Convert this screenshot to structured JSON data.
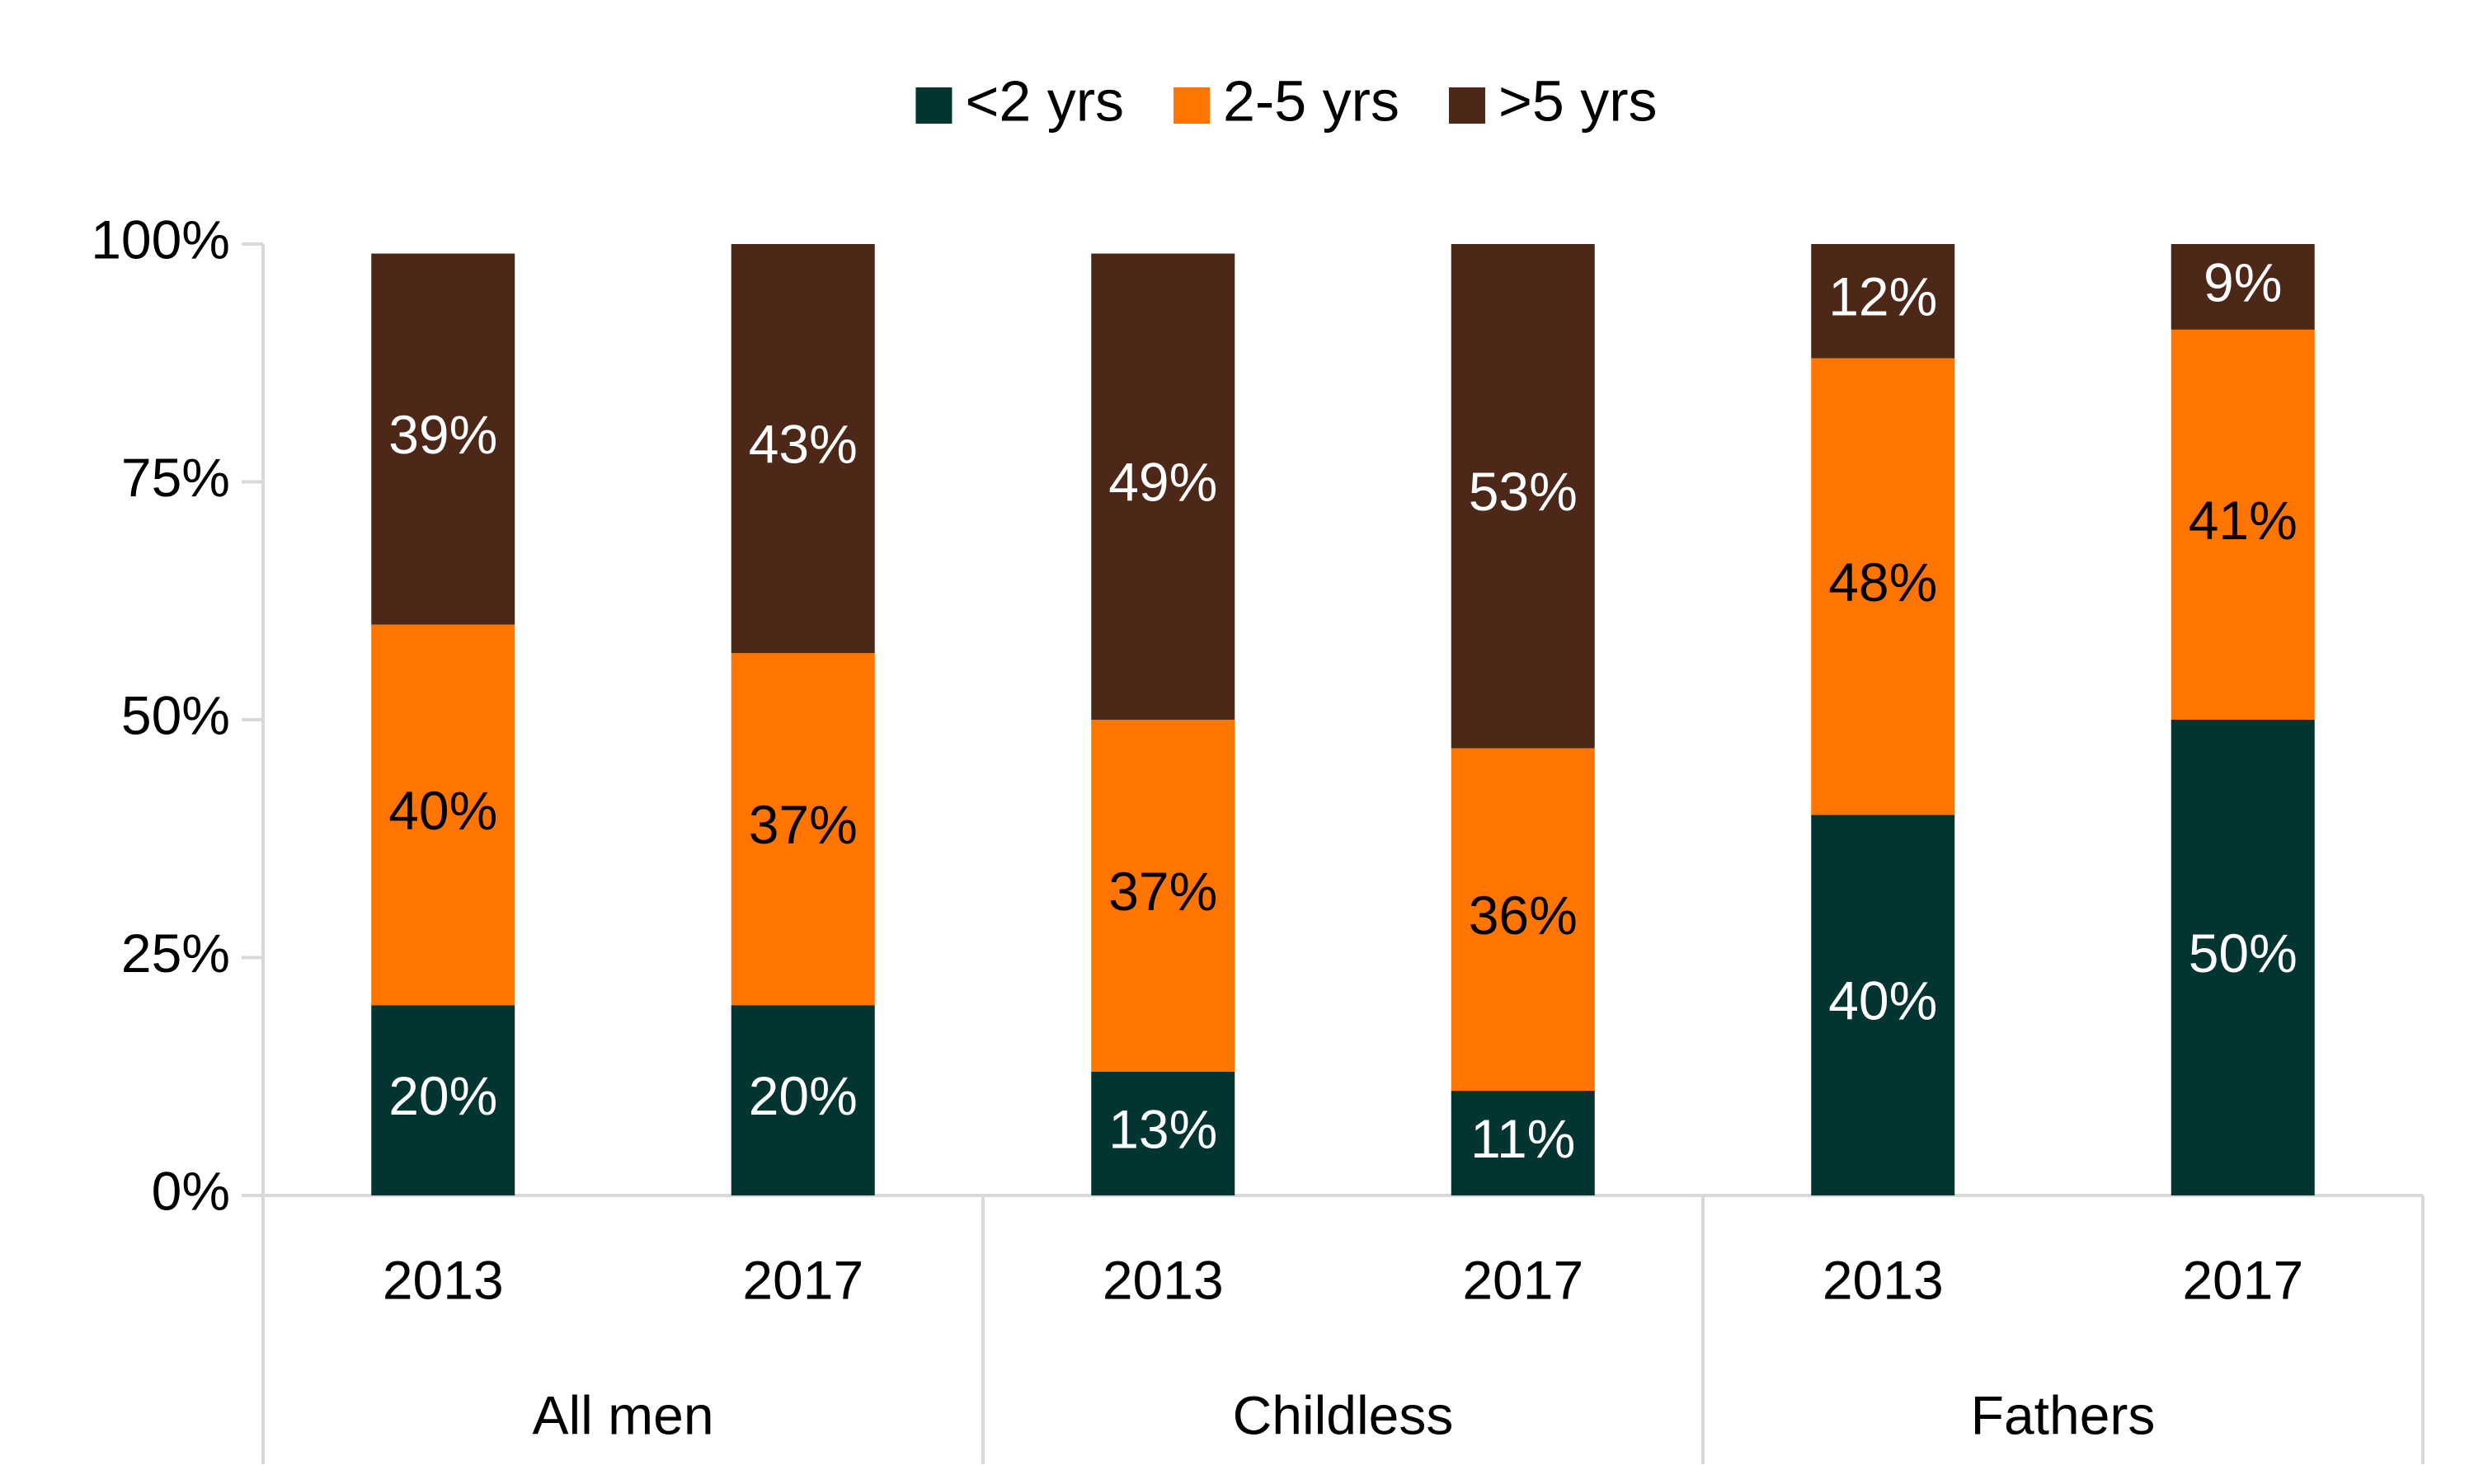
{
  "chart_data": {
    "type": "stacked_bar",
    "categories": [
      "2013",
      "2017",
      "2013",
      "2017",
      "2013",
      "2017"
    ],
    "groups": [
      "All men",
      "Childless",
      "Fathers"
    ],
    "series": [
      {
        "name": "<2 yrs",
        "color": "#023432",
        "label_color": "#ffffff",
        "values": [
          20,
          20,
          13,
          11,
          40,
          50
        ],
        "value_labels": [
          "20%",
          "20%",
          "13%",
          "11%",
          "40%",
          "50%"
        ]
      },
      {
        "name": "2-5 yrs",
        "color": "#ff7500",
        "label_color": "#000000",
        "values": [
          40,
          37,
          37,
          36,
          48,
          41
        ],
        "value_labels": [
          "40%",
          "37%",
          "37%",
          "36%",
          "48%",
          "41%"
        ]
      },
      {
        "name": ">5 yrs",
        "color": "#4d2819",
        "label_color": "#ffffff",
        "values": [
          39,
          43,
          49,
          53,
          12,
          9
        ],
        "value_labels": [
          "39%",
          "43%",
          "49%",
          "53%",
          "12%",
          "9%"
        ]
      }
    ],
    "ylim": [
      0,
      100
    ],
    "yticks": [
      {
        "value": 0,
        "label": "0%"
      },
      {
        "value": 25,
        "label": "25%"
      },
      {
        "value": 50,
        "label": "50%"
      },
      {
        "value": 75,
        "label": "75%"
      },
      {
        "value": 100,
        "label": "100%"
      }
    ],
    "legend": "top"
  }
}
